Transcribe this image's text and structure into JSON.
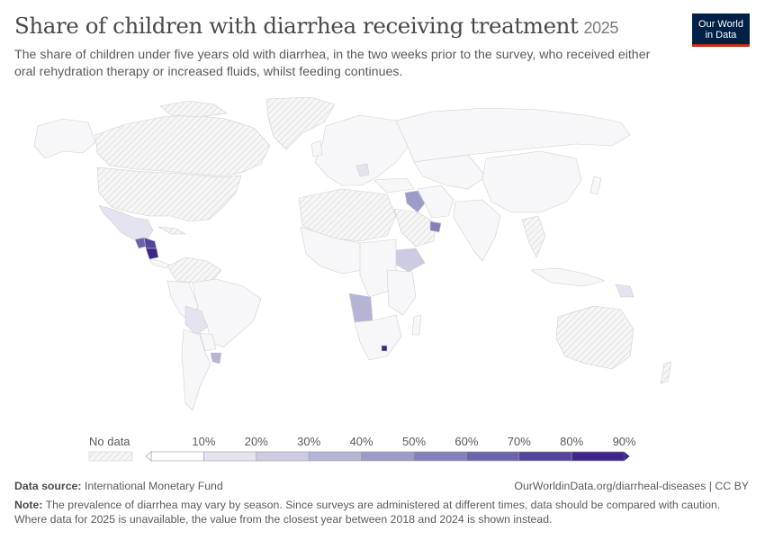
{
  "header": {
    "title": "Share of children with diarrhea receiving treatment",
    "year": "2025",
    "subtitle": "The share of children under five years old with diarrhea, in the two weeks prior to the survey, who received either oral rehydration therapy or increased fluids, whilst feeding continues."
  },
  "logo": {
    "line1": "Our World",
    "line2": "in Data"
  },
  "legend": {
    "no_data_label": "No data",
    "ticks": [
      "10%",
      "20%",
      "30%",
      "40%",
      "50%",
      "60%",
      "70%",
      "80%",
      "90%"
    ],
    "bins": [
      "#ffffff",
      "#e4e3f0",
      "#cccbe3",
      "#b5b4d6",
      "#9d9bc8",
      "#8480bb",
      "#6c64ab",
      "#54459a",
      "#3e2689"
    ],
    "no_data_color": "#e9e9e9"
  },
  "map_data": {
    "regions": [
      {
        "name": "Mexico",
        "value": 15
      },
      {
        "name": "Guatemala",
        "value": 68
      },
      {
        "name": "Honduras",
        "value": 72
      },
      {
        "name": "Nicaragua",
        "value": 85
      },
      {
        "name": "Bolivia",
        "value": 15
      },
      {
        "name": "Uruguay",
        "value": 35
      },
      {
        "name": "Iraq",
        "value": 45
      },
      {
        "name": "Oman",
        "value": 55
      },
      {
        "name": "Ethiopia",
        "value": 25
      },
      {
        "name": "Angola",
        "value": 35
      },
      {
        "name": "Lesotho",
        "value": 90
      },
      {
        "name": "Papua New Guinea",
        "value": 15
      }
    ]
  },
  "footer": {
    "source_label": "Data source:",
    "source_text": "International Monetary Fund",
    "url": "OurWorldinData.org/diarrheal-diseases | CC BY",
    "note_label": "Note:",
    "note_text": "The prevalence of diarrhea may vary by season. Since surveys are administered at different times, data should be compared with caution. Where data for 2025 is unavailable, the value from the closest year between 2018 and 2024 is shown instead."
  }
}
